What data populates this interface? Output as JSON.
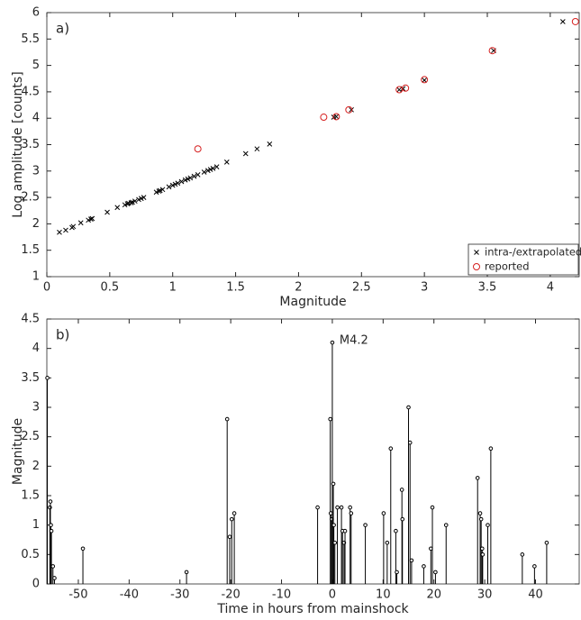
{
  "chart_data": [
    {
      "type": "scatter",
      "label": "a)",
      "x_label": "Magnitude",
      "y_label": "Log amplitude [counts]",
      "xlim": [
        0,
        4.23
      ],
      "xticks": [
        0,
        0.5,
        1,
        1.5,
        2,
        2.5,
        3,
        3.5,
        4
      ],
      "ylim": [
        1,
        6
      ],
      "yticks": [
        1,
        1.5,
        2,
        2.5,
        3,
        3.5,
        4,
        4.5,
        5,
        5.5,
        6
      ],
      "legend": "bottom-right",
      "series": [
        {
          "name": "intra-/extrapolated",
          "color": "#000000",
          "marker": "x",
          "x": [
            0.1,
            0.15,
            0.2,
            0.21,
            0.27,
            0.33,
            0.35,
            0.36,
            0.48,
            0.56,
            0.62,
            0.64,
            0.65,
            0.67,
            0.68,
            0.7,
            0.73,
            0.75,
            0.77,
            0.87,
            0.89,
            0.9,
            0.92,
            0.97,
            1.0,
            1.02,
            1.04,
            1.07,
            1.1,
            1.12,
            1.14,
            1.17,
            1.2,
            1.25,
            1.28,
            1.3,
            1.32,
            1.35,
            1.43,
            1.58,
            1.67,
            1.77,
            2.28,
            2.3,
            2.42,
            2.8,
            2.83,
            3.0,
            3.55,
            4.1
          ],
          "values": [
            1.84,
            1.88,
            1.93,
            1.95,
            2.02,
            2.07,
            2.09,
            2.1,
            2.22,
            2.31,
            2.36,
            2.38,
            2.39,
            2.4,
            2.41,
            2.43,
            2.46,
            2.48,
            2.5,
            2.6,
            2.62,
            2.63,
            2.65,
            2.7,
            2.73,
            2.75,
            2.77,
            2.8,
            2.83,
            2.85,
            2.87,
            2.9,
            2.93,
            2.98,
            3.01,
            3.03,
            3.05,
            3.08,
            3.17,
            3.33,
            3.42,
            3.51,
            4.02,
            4.03,
            4.16,
            4.54,
            4.56,
            4.72,
            5.28,
            5.83
          ]
        },
        {
          "name": "reported",
          "color": "#d62020",
          "marker": "o",
          "x": [
            1.2,
            2.2,
            2.3,
            2.4,
            2.8,
            2.85,
            3.0,
            3.54,
            4.2
          ],
          "values": [
            3.42,
            4.02,
            4.03,
            4.16,
            4.54,
            4.57,
            4.73,
            5.28,
            5.83
          ]
        }
      ]
    },
    {
      "type": "stem",
      "label": "b)",
      "x_label": "Time in hours from mainshock",
      "y_label": "Magnitude",
      "annotation": "M4.2",
      "color": "#000000",
      "xlim": [
        -56.2,
        48.6
      ],
      "xticks": [
        -50,
        -40,
        -30,
        -20,
        -10,
        0,
        10,
        20,
        30,
        40
      ],
      "ylim": [
        0,
        4.5
      ],
      "yticks": [
        0,
        0.5,
        1,
        1.5,
        2,
        2.5,
        3,
        3.5,
        4,
        4.5
      ],
      "x": [
        -56.1,
        -55.6,
        -55.5,
        -55.4,
        -55.3,
        -55.0,
        -54.7,
        -49.1,
        -28.7,
        -20.7,
        -20.2,
        -19.8,
        -19.3,
        -2.9,
        -0.4,
        -0.3,
        -0.1,
        0.0,
        0.2,
        0.3,
        0.5,
        1.0,
        1.8,
        2.0,
        2.3,
        2.5,
        3.5,
        3.7,
        6.5,
        10.1,
        10.8,
        11.5,
        12.5,
        12.7,
        13.7,
        13.8,
        15.0,
        15.3,
        15.6,
        18.0,
        19.4,
        19.7,
        20.3,
        22.4,
        28.6,
        29.1,
        29.3,
        29.5,
        29.6,
        30.6,
        31.2,
        37.4,
        39.8,
        42.2
      ],
      "values": [
        3.5,
        1.3,
        1.4,
        1.0,
        0.9,
        0.3,
        0.1,
        0.6,
        0.2,
        2.8,
        0.8,
        1.1,
        1.2,
        1.3,
        2.8,
        1.2,
        1.1,
        4.1,
        1.7,
        1.0,
        0.7,
        1.3,
        1.3,
        0.9,
        0.7,
        0.9,
        1.3,
        1.2,
        1.0,
        1.2,
        0.7,
        2.3,
        0.9,
        0.2,
        1.6,
        1.1,
        3.0,
        2.4,
        0.4,
        0.3,
        0.6,
        1.3,
        0.2,
        1.0,
        1.8,
        1.2,
        1.1,
        0.6,
        0.5,
        1.0,
        2.3,
        0.5,
        0.3,
        0.7
      ]
    }
  ]
}
